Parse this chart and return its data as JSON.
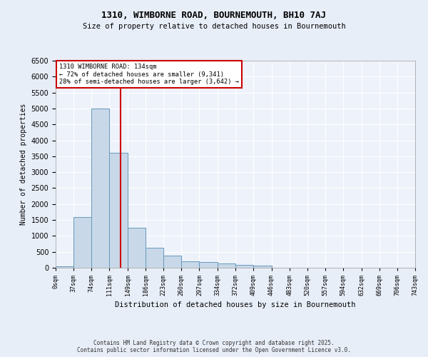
{
  "title1": "1310, WIMBORNE ROAD, BOURNEMOUTH, BH10 7AJ",
  "title2": "Size of property relative to detached houses in Bournemouth",
  "xlabel": "Distribution of detached houses by size in Bournemouth",
  "ylabel": "Number of detached properties",
  "annotation_title": "1310 WIMBORNE ROAD: 134sqm",
  "annotation_line1": "← 72% of detached houses are smaller (9,341)",
  "annotation_line2": "28% of semi-detached houses are larger (3,642) →",
  "property_size_sqm": 134,
  "bin_edges": [
    0,
    37,
    74,
    111,
    149,
    186,
    223,
    260,
    297,
    334,
    372,
    409,
    446,
    483,
    520,
    557,
    594,
    632,
    669,
    706,
    743
  ],
  "bin_counts": [
    50,
    1600,
    5000,
    3600,
    1250,
    620,
    370,
    200,
    170,
    140,
    80,
    60,
    0,
    0,
    0,
    0,
    0,
    0,
    0,
    0
  ],
  "tick_labels": [
    "0sqm",
    "37sqm",
    "74sqm",
    "111sqm",
    "149sqm",
    "186sqm",
    "223sqm",
    "260sqm",
    "297sqm",
    "334sqm",
    "372sqm",
    "409sqm",
    "446sqm",
    "483sqm",
    "520sqm",
    "557sqm",
    "594sqm",
    "632sqm",
    "669sqm",
    "706sqm",
    "743sqm"
  ],
  "bar_color": "#c8d8e8",
  "bar_edge_color": "#6699bb",
  "line_color": "#cc0000",
  "annotation_box_color": "#cc0000",
  "background_color": "#e8eef8",
  "plot_bg_color": "#eef2fa",
  "ylim": [
    0,
    6500
  ],
  "yticks": [
    0,
    500,
    1000,
    1500,
    2000,
    2500,
    3000,
    3500,
    4000,
    4500,
    5000,
    5500,
    6000,
    6500
  ],
  "footer1": "Contains HM Land Registry data © Crown copyright and database right 2025.",
  "footer2": "Contains public sector information licensed under the Open Government Licence v3.0."
}
